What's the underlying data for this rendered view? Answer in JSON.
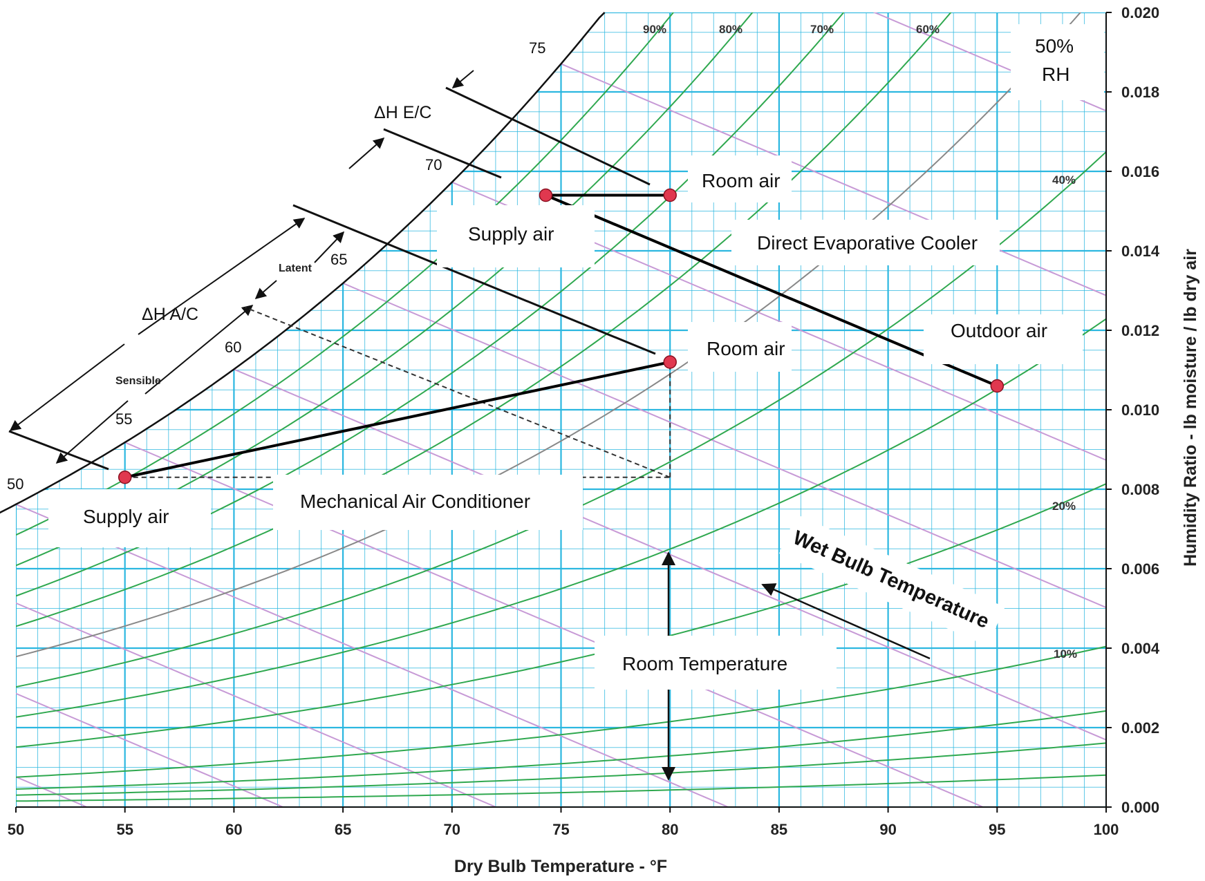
{
  "chart_data": {
    "type": "psychrometric",
    "title": "",
    "xlabel": "Dry Bulb Temperature - °F",
    "ylabel": "Humidity Ratio - lb moisture / lb dry air",
    "xlim": [
      50,
      100
    ],
    "ylim": [
      0.0,
      0.02
    ],
    "x_ticks": [
      "50",
      "55",
      "60",
      "65",
      "70",
      "75",
      "80",
      "85",
      "90",
      "95",
      "100"
    ],
    "y_ticks": [
      "0.000",
      "0.002",
      "0.004",
      "0.006",
      "0.008",
      "0.010",
      "0.012",
      "0.014",
      "0.016",
      "0.018",
      "0.020"
    ],
    "grid": true,
    "rh_curves_percent": [
      10,
      20,
      30,
      40,
      50,
      60,
      70,
      80,
      90
    ],
    "rh_labels": [
      "90%",
      "80%",
      "70%",
      "60%",
      "40%",
      "20%",
      "10%"
    ],
    "wet_bulb_labels": [
      "50",
      "55",
      "60",
      "65",
      "70",
      "75"
    ],
    "annotations": {
      "delta_h_ec": "ΔH E/C",
      "delta_h_ac": "ΔH A/C",
      "latent": "Latent",
      "sensible": "Sensible"
    },
    "series": [
      {
        "name": "Mechanical Air Conditioner",
        "points": [
          {
            "label": "Supply air",
            "x": 55,
            "y": 0.0083
          },
          {
            "label": "Room air",
            "x": 80,
            "y": 0.0112
          }
        ]
      },
      {
        "name": "Direct Evaporative Cooler",
        "points": [
          {
            "label": "Supply air",
            "x": 74.3,
            "y": 0.0154
          },
          {
            "label": "Room air",
            "x": 80,
            "y": 0.0154
          },
          {
            "label": "Outdoor air",
            "x": 95,
            "y": 0.0106
          }
        ]
      }
    ],
    "callouts": {
      "room_air_ec": "Room air",
      "supply_air_ec": "Supply air",
      "direct_evaporative_cooler": "Direct Evaporative Cooler",
      "outdoor_air": "Outdoor air",
      "room_air_ac": "Room air",
      "supply_air_ac": "Supply air",
      "mechanical_air_conditioner": "Mechanical Air Conditioner",
      "rh_50_line1": "50%",
      "rh_50_line2": "RH",
      "wet_bulb_temperature": "Wet Bulb Temperature",
      "room_temperature": "Room Temperature"
    },
    "colors": {
      "grid": "#2bb7e0",
      "rh_curve": "#2fa84f",
      "wet_bulb_line": "#c79ad6",
      "point": "#e0384f",
      "process_line": "#000000"
    }
  }
}
